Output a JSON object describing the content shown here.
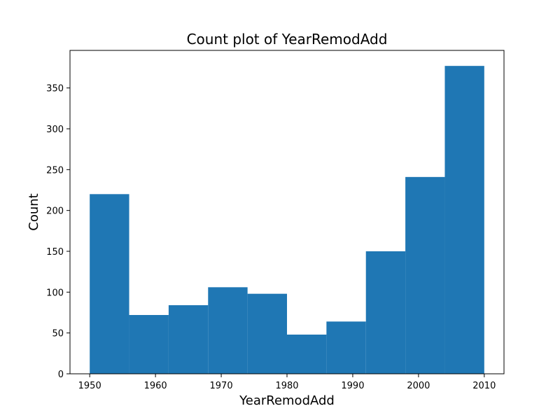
{
  "chart_data": {
    "type": "bar",
    "title": "Count plot of YearRemodAdd",
    "xlabel": "YearRemodAdd",
    "ylabel": "Count",
    "bin_edges": [
      1950,
      1956,
      1962,
      1968,
      1974,
      1980,
      1986,
      1992,
      1998,
      2004,
      2010
    ],
    "values": [
      220,
      72,
      84,
      106,
      98,
      48,
      64,
      150,
      241,
      377
    ],
    "xlim": [
      1947,
      2013
    ],
    "ylim": [
      0,
      396
    ],
    "xticks": [
      1950,
      1960,
      1970,
      1980,
      1990,
      2000,
      2010
    ],
    "yticks": [
      0,
      50,
      100,
      150,
      200,
      250,
      300,
      350
    ],
    "grid": false,
    "bar_color": "#1f77b4"
  }
}
